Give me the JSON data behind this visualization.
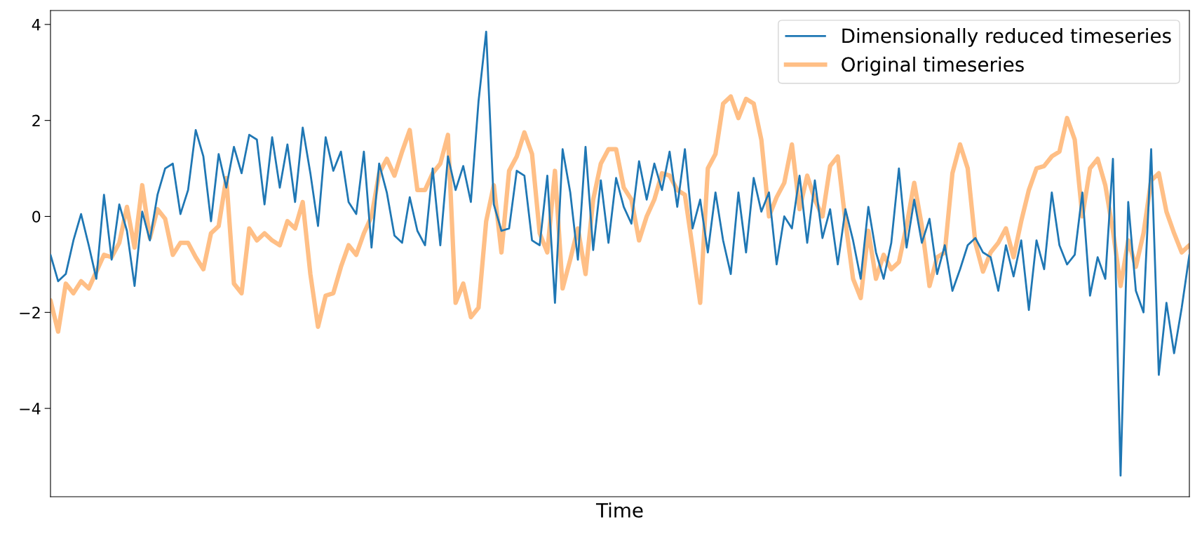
{
  "chart_data": {
    "type": "line",
    "xlabel": "Time",
    "legend": "top right",
    "tick_labels": "y",
    "ylim": [
      -5.84,
      4.29
    ],
    "yticks": [
      {
        "value": -4,
        "label": "−4"
      },
      {
        "value": -2,
        "label": "−2"
      },
      0,
      2,
      4
    ],
    "categories": [
      null,
      null,
      null,
      null,
      null,
      null,
      null,
      null,
      null,
      null,
      null,
      null,
      null,
      null,
      null,
      null,
      null,
      null,
      null,
      null,
      null,
      null,
      null,
      null,
      null,
      null,
      null,
      null,
      null,
      null,
      null,
      null,
      null,
      null,
      null,
      null,
      null,
      null,
      null,
      null,
      null,
      null,
      null,
      null,
      null,
      null,
      null,
      null,
      null,
      null,
      null,
      null,
      null,
      null,
      null,
      null,
      null,
      null,
      null,
      null,
      null,
      null,
      null,
      null,
      null,
      null,
      null,
      null,
      null,
      null,
      null,
      null,
      null,
      null,
      null,
      null,
      null,
      null,
      null,
      null,
      null,
      null,
      null,
      null,
      null,
      null,
      null,
      null,
      null,
      null,
      null,
      null,
      null,
      null,
      null,
      null,
      null,
      null,
      null,
      null,
      null,
      null,
      null,
      null,
      null,
      null,
      null,
      null,
      null,
      null,
      null,
      null,
      null,
      null,
      null,
      null,
      null,
      null,
      null,
      null,
      null,
      null,
      null,
      null,
      null,
      null,
      null,
      null,
      null,
      null,
      null,
      null,
      null,
      null,
      null,
      null,
      null,
      null,
      null,
      null,
      null,
      null,
      null,
      null,
      null,
      null,
      null,
      null,
      null,
      null
    ],
    "series": [
      {
        "name": "Dimensionally reduced timeseries",
        "color": "#1f77b4",
        "values": [
          -0.8,
          -1.35,
          -1.2,
          -0.5,
          0.05,
          -0.6,
          -1.3,
          0.45,
          -0.9,
          0.25,
          -0.3,
          -1.45,
          0.1,
          -0.5,
          0.45,
          1.0,
          1.1,
          0.05,
          0.55,
          1.8,
          1.25,
          -0.1,
          1.3,
          0.6,
          1.45,
          0.9,
          1.7,
          1.6,
          0.25,
          1.65,
          0.6,
          1.5,
          0.3,
          1.85,
          0.9,
          -0.2,
          1.65,
          0.95,
          1.35,
          0.3,
          0.05,
          1.35,
          -0.65,
          1.1,
          0.5,
          -0.4,
          -0.55,
          0.4,
          -0.3,
          -0.6,
          1.0,
          -0.6,
          1.25,
          0.55,
          1.05,
          0.3,
          2.4,
          3.85,
          0.25,
          -0.3,
          -0.25,
          0.95,
          0.85,
          -0.5,
          -0.6,
          0.85,
          -1.8,
          1.4,
          0.5,
          -0.9,
          1.45,
          -0.7,
          0.75,
          -0.55,
          0.8,
          0.2,
          -0.15,
          1.15,
          0.35,
          1.1,
          0.55,
          1.35,
          0.2,
          1.4,
          -0.25,
          0.35,
          -0.75,
          0.5,
          -0.5,
          -1.2,
          0.5,
          -0.75,
          0.8,
          0.1,
          0.5,
          -1.0,
          0.0,
          -0.25,
          0.85,
          -0.55,
          0.75,
          -0.45,
          0.15,
          -1.0,
          0.15,
          -0.5,
          -1.3,
          0.2,
          -0.75,
          -1.3,
          -0.55,
          1.0,
          -0.65,
          0.35,
          -0.55,
          -0.05,
          -1.2,
          -0.6,
          -1.55,
          -1.1,
          -0.6,
          -0.45,
          -0.75,
          -0.85,
          -1.55,
          -0.6,
          -1.25,
          -0.5,
          -1.95,
          -0.5,
          -1.1,
          0.5,
          -0.6,
          -1.0,
          -0.8,
          0.5,
          -1.65,
          -0.85,
          -1.3,
          1.2,
          -5.4,
          0.3,
          -1.55,
          -2.0,
          1.4,
          -3.3,
          -1.8,
          -2.85,
          -1.9,
          -0.8
        ]
      },
      {
        "name": "Original timeseries",
        "color": "#ffbf86",
        "values": [
          -1.75,
          -2.4,
          -1.4,
          -1.6,
          -1.35,
          -1.5,
          -1.15,
          -0.8,
          -0.85,
          -0.55,
          0.2,
          -0.65,
          0.65,
          -0.45,
          0.15,
          -0.05,
          -0.8,
          -0.55,
          -0.55,
          -0.85,
          -1.1,
          -0.35,
          -0.2,
          0.8,
          -1.4,
          -1.6,
          -0.25,
          -0.5,
          -0.35,
          -0.5,
          -0.6,
          -0.1,
          -0.25,
          0.3,
          -1.2,
          -2.3,
          -1.65,
          -1.6,
          -1.05,
          -0.6,
          -0.8,
          -0.35,
          0.0,
          0.9,
          1.2,
          0.85,
          1.35,
          1.8,
          0.55,
          0.55,
          0.9,
          1.1,
          1.7,
          -1.8,
          -1.4,
          -2.1,
          -1.9,
          -0.1,
          0.65,
          -0.75,
          0.95,
          1.25,
          1.75,
          1.3,
          -0.35,
          -0.75,
          0.95,
          -1.5,
          -0.9,
          -0.25,
          -1.2,
          0.35,
          1.1,
          1.4,
          1.4,
          0.6,
          0.35,
          -0.5,
          0.0,
          0.35,
          0.9,
          0.85,
          0.55,
          0.45,
          -0.65,
          -1.8,
          1.0,
          1.3,
          2.35,
          2.5,
          2.05,
          2.45,
          2.35,
          1.6,
          0.0,
          0.4,
          0.7,
          1.5,
          0.15,
          0.85,
          0.35,
          0.0,
          1.05,
          1.25,
          -0.1,
          -1.3,
          -1.7,
          -0.3,
          -1.3,
          -0.8,
          -1.1,
          -0.95,
          -0.2,
          0.7,
          -0.2,
          -1.45,
          -0.85,
          -0.75,
          0.9,
          1.5,
          1.0,
          -0.55,
          -1.15,
          -0.75,
          -0.55,
          -0.25,
          -0.85,
          -0.1,
          0.55,
          1.0,
          1.05,
          1.25,
          1.35,
          2.05,
          1.6,
          0.0,
          1.0,
          1.2,
          0.65,
          -0.3,
          -1.45,
          -0.5,
          -1.05,
          -0.35,
          0.75,
          0.9,
          0.1,
          -0.35,
          -0.75,
          -0.6
        ]
      }
    ]
  }
}
